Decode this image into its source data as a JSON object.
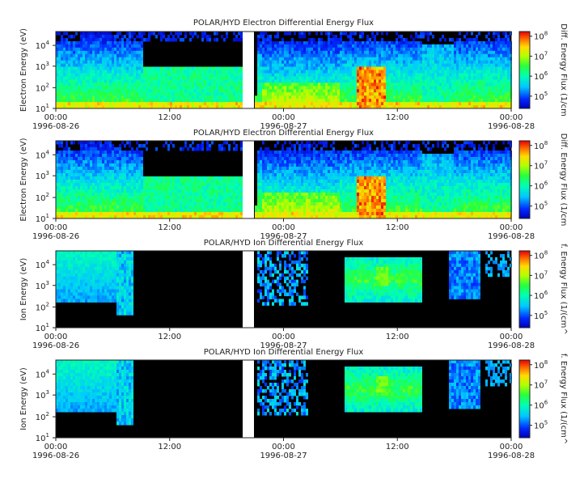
{
  "chart_data": [
    {
      "type": "heatmap",
      "title": "POLAR/HYD  Electron Differential Energy Flux",
      "ylabel": "Electron Energy (eV)",
      "colorbar_label": "Diff. Energy Flux (1/cm",
      "y_scale": "log",
      "y_ticks": [
        {
          "base": "10",
          "exp": "1"
        },
        {
          "base": "10",
          "exp": "2"
        },
        {
          "base": "10",
          "exp": "3"
        },
        {
          "base": "10",
          "exp": "4"
        }
      ],
      "colorbar_ticks": [
        {
          "base": "10",
          "exp": "5"
        },
        {
          "base": "10",
          "exp": "6"
        },
        {
          "base": "10",
          "exp": "7"
        },
        {
          "base": "10",
          "exp": "8"
        }
      ],
      "x_ticks": [
        {
          "time": "00:00",
          "date": "1996-08-26"
        },
        {
          "time": "12:00",
          "date": ""
        },
        {
          "time": "00:00",
          "date": "1996-08-27"
        },
        {
          "time": "12:00",
          "date": ""
        },
        {
          "time": "00:00",
          "date": "1996-08-28"
        }
      ],
      "data_gap": "~20:40-21:10 on 1996-08-26"
    },
    {
      "type": "heatmap",
      "title": "POLAR/HYD  Electron Differential Energy Flux",
      "ylabel": "Electron Energy (eV)",
      "colorbar_label": "Diff. Energy Flux (1/cm",
      "y_scale": "log",
      "y_ticks": [
        {
          "base": "10",
          "exp": "1"
        },
        {
          "base": "10",
          "exp": "2"
        },
        {
          "base": "10",
          "exp": "3"
        },
        {
          "base": "10",
          "exp": "4"
        }
      ],
      "colorbar_ticks": [
        {
          "base": "10",
          "exp": "5"
        },
        {
          "base": "10",
          "exp": "6"
        },
        {
          "base": "10",
          "exp": "7"
        },
        {
          "base": "10",
          "exp": "8"
        }
      ],
      "x_ticks": [
        {
          "time": "00:00",
          "date": "1996-08-26"
        },
        {
          "time": "12:00",
          "date": ""
        },
        {
          "time": "00:00",
          "date": "1996-08-27"
        },
        {
          "time": "12:00",
          "date": ""
        },
        {
          "time": "00:00",
          "date": "1996-08-28"
        }
      ]
    },
    {
      "type": "heatmap",
      "title": "POLAR/HYD  Ion Differential Energy Flux",
      "ylabel": "Ion Energy (eV)",
      "colorbar_label": "f. Energy Flux (1/(cm^",
      "y_scale": "log",
      "y_ticks": [
        {
          "base": "10",
          "exp": "1"
        },
        {
          "base": "10",
          "exp": "2"
        },
        {
          "base": "10",
          "exp": "3"
        },
        {
          "base": "10",
          "exp": "4"
        }
      ],
      "colorbar_ticks": [
        {
          "base": "10",
          "exp": "5"
        },
        {
          "base": "10",
          "exp": "6"
        },
        {
          "base": "10",
          "exp": "7"
        },
        {
          "base": "10",
          "exp": "8"
        }
      ],
      "x_ticks": [
        {
          "time": "00:00",
          "date": "1996-08-26"
        },
        {
          "time": "12:00",
          "date": ""
        },
        {
          "time": "00:00",
          "date": "1996-08-27"
        },
        {
          "time": "12:00",
          "date": ""
        },
        {
          "time": "00:00",
          "date": "1996-08-28"
        }
      ]
    },
    {
      "type": "heatmap",
      "title": "POLAR/HYD  Ion Differential Energy Flux",
      "ylabel": "Ion Energy (eV)",
      "colorbar_label": "f. Energy Flux (1/(cm^",
      "y_scale": "log",
      "y_ticks": [
        {
          "base": "10",
          "exp": "1"
        },
        {
          "base": "10",
          "exp": "2"
        },
        {
          "base": "10",
          "exp": "3"
        },
        {
          "base": "10",
          "exp": "4"
        }
      ],
      "colorbar_ticks": [
        {
          "base": "10",
          "exp": "5"
        },
        {
          "base": "10",
          "exp": "6"
        },
        {
          "base": "10",
          "exp": "7"
        },
        {
          "base": "10",
          "exp": "8"
        }
      ],
      "x_ticks": [
        {
          "time": "00:00",
          "date": "1996-08-26"
        },
        {
          "time": "12:00",
          "date": ""
        },
        {
          "time": "00:00",
          "date": "1996-08-27"
        },
        {
          "time": "12:00",
          "date": ""
        },
        {
          "time": "00:00",
          "date": "1996-08-28"
        }
      ]
    }
  ]
}
